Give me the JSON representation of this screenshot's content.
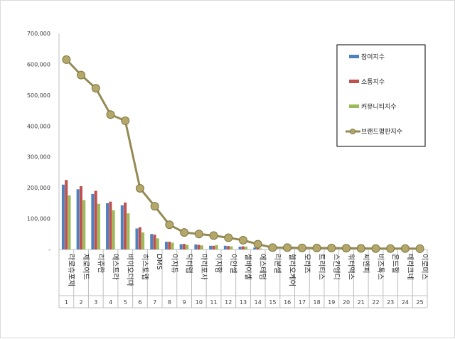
{
  "chart_data": {
    "type": "bar",
    "title": "",
    "xlabel": "",
    "ylabel": "",
    "ylim": [
      0,
      700000
    ],
    "yticks": [
      "-",
      "100,000",
      "200,000",
      "300,000",
      "400,000",
      "500,000",
      "600,000",
      "700,000"
    ],
    "grid": false,
    "legend_position": "top-right",
    "categories": [
      "라로슈포제",
      "제로이드",
      "리쥬란",
      "에스트라",
      "바이오더마",
      "히스토랩",
      "DMS",
      "이지듀",
      "닥터랩",
      "마리포사",
      "이지함",
      "이안셀",
      "셀바이셀",
      "에스테덤",
      "리본셀",
      "헬리오케어",
      "모라즈",
      "트리티스",
      "스킨엥디",
      "워터맥스",
      "씨엔피",
      "비즈톡스",
      "온드힐",
      "테라크네",
      "이로미스"
    ],
    "ranks": [
      "1",
      "2",
      "3",
      "4",
      "5",
      "6",
      "7",
      "8",
      "9",
      "10",
      "11",
      "12",
      "13",
      "14",
      "15",
      "16",
      "17",
      "18",
      "19",
      "20",
      "21",
      "22",
      "23",
      "24",
      "25"
    ],
    "series": [
      {
        "name": "참여지수",
        "type": "bar",
        "color": "#4f81bd",
        "values": [
          210000,
          195000,
          180000,
          150000,
          143000,
          68000,
          50000,
          25000,
          17000,
          16000,
          12000,
          12000,
          9000,
          6000,
          3000,
          2500,
          2000,
          1500,
          1500,
          1000,
          1000,
          1000,
          800,
          800,
          800
        ]
      },
      {
        "name": "소통지수",
        "type": "bar",
        "color": "#c0504d",
        "values": [
          225000,
          205000,
          190000,
          155000,
          152000,
          72000,
          48000,
          25000,
          18000,
          15000,
          12000,
          11000,
          10000,
          5000,
          3000,
          2500,
          2000,
          1500,
          1500,
          1000,
          1000,
          1000,
          800,
          800,
          800
        ]
      },
      {
        "name": "커뮤니티지수",
        "type": "bar",
        "color": "#9bbb59",
        "values": [
          175000,
          160000,
          148000,
          127000,
          117000,
          55000,
          36000,
          22000,
          15000,
          13000,
          14000,
          10000,
          9000,
          3000,
          2000,
          2000,
          1500,
          1500,
          1000,
          1000,
          1000,
          800,
          800,
          600,
          600
        ]
      },
      {
        "name": "브랜드평판지수",
        "type": "line",
        "color": "#948a54",
        "values": [
          615000,
          565000,
          522000,
          437000,
          417000,
          198000,
          140000,
          80000,
          55000,
          50000,
          45000,
          38000,
          30000,
          17000,
          6000,
          6000,
          5000,
          4500,
          4500,
          4000,
          3500,
          3000,
          3000,
          3000,
          2500
        ]
      }
    ]
  }
}
